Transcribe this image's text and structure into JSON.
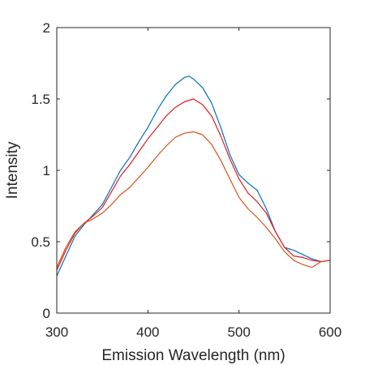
{
  "chart_data": {
    "type": "line",
    "title": "",
    "xlabel": "Emission Wavelength (nm)",
    "ylabel": "Intensity",
    "xlim": [
      300,
      600
    ],
    "ylim": [
      0,
      2
    ],
    "xticks": [
      300,
      400,
      500,
      600
    ],
    "xtick_labels": [
      "300",
      "400",
      "500",
      "600"
    ],
    "yticks": [
      0,
      0.5,
      1,
      1.5,
      2
    ],
    "ytick_labels": [
      "0",
      "0.5",
      "1",
      "1.5",
      "2"
    ],
    "grid": false,
    "legend": "none",
    "series": [
      {
        "color": "#0072BD",
        "x": [
          300,
          310,
          320,
          330,
          340,
          350,
          360,
          370,
          380,
          390,
          400,
          410,
          420,
          430,
          440,
          445,
          450,
          460,
          470,
          480,
          490,
          500,
          510,
          520,
          530,
          540,
          550,
          560,
          570,
          580,
          590,
          600
        ],
        "y": [
          0.26,
          0.4,
          0.54,
          0.62,
          0.69,
          0.76,
          0.88,
          1.0,
          1.09,
          1.2,
          1.3,
          1.42,
          1.52,
          1.6,
          1.65,
          1.66,
          1.64,
          1.58,
          1.47,
          1.3,
          1.11,
          0.97,
          0.91,
          0.86,
          0.73,
          0.57,
          0.46,
          0.44,
          0.41,
          0.38,
          0.36,
          0.37
        ]
      },
      {
        "color": "#E8191F",
        "x": [
          300,
          310,
          320,
          330,
          340,
          350,
          360,
          370,
          380,
          390,
          400,
          410,
          420,
          430,
          440,
          450,
          460,
          470,
          480,
          490,
          500,
          510,
          520,
          530,
          540,
          550,
          560,
          570,
          580,
          590,
          600
        ],
        "y": [
          0.3,
          0.44,
          0.56,
          0.63,
          0.68,
          0.74,
          0.85,
          0.96,
          1.04,
          1.13,
          1.22,
          1.3,
          1.38,
          1.44,
          1.48,
          1.5,
          1.46,
          1.38,
          1.24,
          1.08,
          0.94,
          0.84,
          0.78,
          0.7,
          0.57,
          0.46,
          0.4,
          0.39,
          0.37,
          0.36,
          0.37
        ]
      },
      {
        "color": "#D95319",
        "x": [
          300,
          310,
          320,
          330,
          340,
          350,
          360,
          370,
          380,
          390,
          400,
          410,
          420,
          430,
          440,
          450,
          460,
          470,
          480,
          490,
          500,
          510,
          520,
          530,
          540,
          550,
          560,
          570,
          580,
          590,
          600
        ],
        "y": [
          0.32,
          0.46,
          0.57,
          0.63,
          0.66,
          0.7,
          0.76,
          0.83,
          0.88,
          0.95,
          1.02,
          1.1,
          1.17,
          1.23,
          1.26,
          1.27,
          1.25,
          1.18,
          1.07,
          0.94,
          0.81,
          0.73,
          0.67,
          0.6,
          0.52,
          0.43,
          0.37,
          0.34,
          0.32,
          0.36,
          0.37
        ]
      }
    ]
  }
}
